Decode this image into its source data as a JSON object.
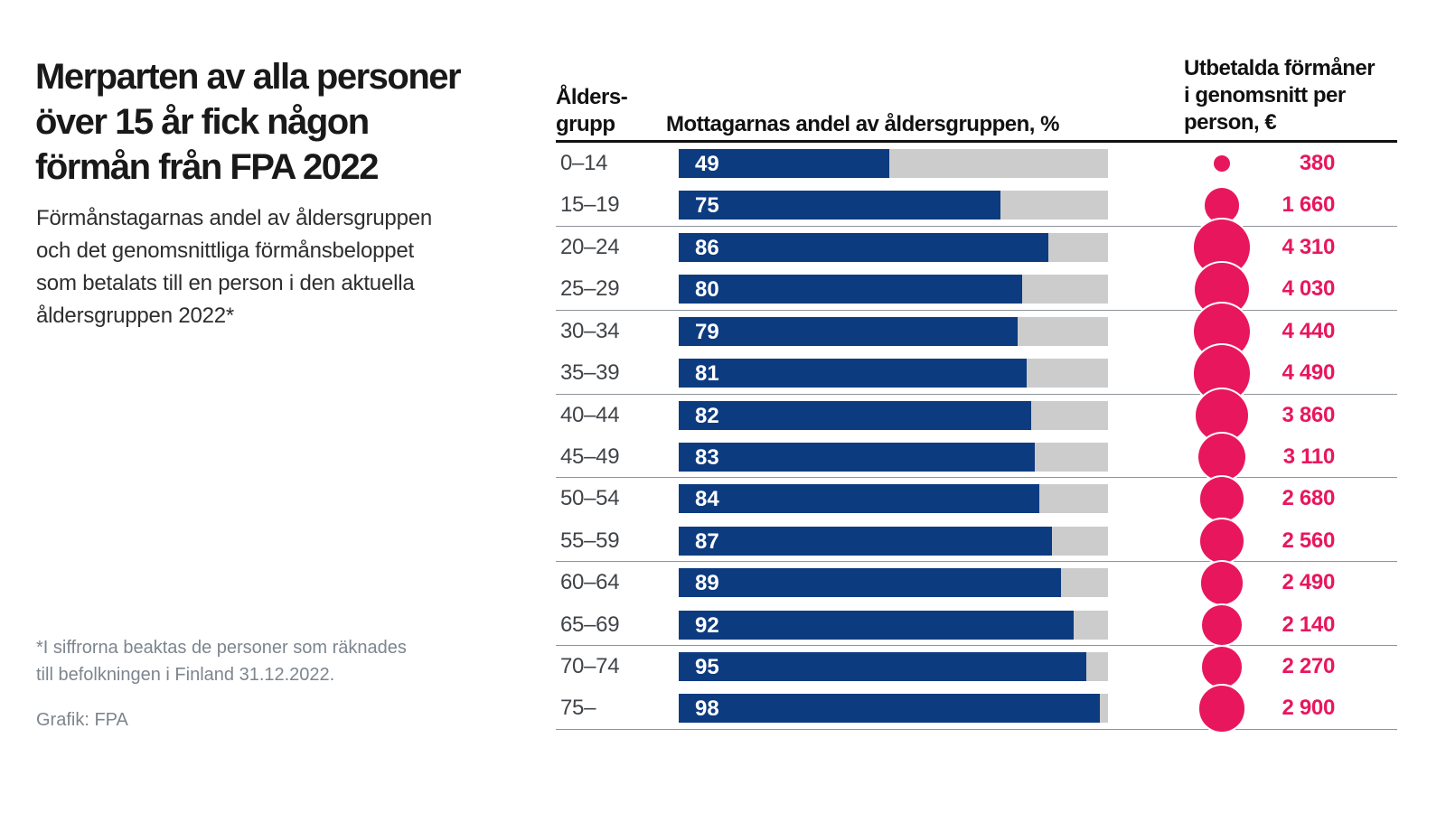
{
  "title_lines": [
    "Merparten av alla personer",
    "över 15 år fick någon",
    "förmån från FPA 2022"
  ],
  "subtitle_lines": [
    "Förmånstagarnas andel av åldersgruppen",
    "och det genomsnittliga förmånsbeloppet",
    "som betalats till en person i den aktuella",
    "åldersgruppen 2022*"
  ],
  "footnote_lines": [
    "*I siffrorna beaktas de personer som räknades",
    "till befolkningen i Finland 31.12.2022."
  ],
  "credit": "Grafik: FPA",
  "table": {
    "col1_header_lines": [
      "Ålders-",
      "grupp"
    ],
    "col2_header": "Mottagarnas andel av åldersgruppen, %",
    "col3_header_lines": [
      "Utbetalda förmåner",
      "i genomsnitt per",
      "person, €"
    ],
    "rows": [
      {
        "age": "0–14",
        "pct": 49,
        "amount": 380,
        "amount_display": "380"
      },
      {
        "age": "15–19",
        "pct": 75,
        "amount": 1660,
        "amount_display": "1 660"
      },
      {
        "age": "20–24",
        "pct": 86,
        "amount": 4310,
        "amount_display": "4 310"
      },
      {
        "age": "25–29",
        "pct": 80,
        "amount": 4030,
        "amount_display": "4 030"
      },
      {
        "age": "30–34",
        "pct": 79,
        "amount": 4440,
        "amount_display": "4 440"
      },
      {
        "age": "35–39",
        "pct": 81,
        "amount": 4490,
        "amount_display": "4 490"
      },
      {
        "age": "40–44",
        "pct": 82,
        "amount": 3860,
        "amount_display": "3 860"
      },
      {
        "age": "45–49",
        "pct": 83,
        "amount": 3110,
        "amount_display": "3 110"
      },
      {
        "age": "50–54",
        "pct": 84,
        "amount": 2680,
        "amount_display": "2 680"
      },
      {
        "age": "55–59",
        "pct": 87,
        "amount": 2560,
        "amount_display": "2 560"
      },
      {
        "age": "60–64",
        "pct": 89,
        "amount": 2490,
        "amount_display": "2 490"
      },
      {
        "age": "65–69",
        "pct": 92,
        "amount": 2140,
        "amount_display": "2 140"
      },
      {
        "age": "70–74",
        "pct": 95,
        "amount": 2270,
        "amount_display": "2 270"
      },
      {
        "age": "75–",
        "pct": 98,
        "amount": 2900,
        "amount_display": "2 900"
      }
    ]
  },
  "colors": {
    "bar_blue": "#0d3b80",
    "bubble_pink": "#e8175d",
    "track_gray": "#cccccc",
    "rule_black": "#111111",
    "divider_gray": "#8f949a"
  },
  "chart_data": {
    "type": "bar",
    "title": "Merparten av alla personer över 15 år fick någon förmån från FPA 2022",
    "subtitle": "Förmånstagarnas andel av åldersgruppen och det genomsnittliga förmånsbeloppet som betalats till en person i den aktuella åldersgruppen 2022*",
    "categories": [
      "0–14",
      "15–19",
      "20–24",
      "25–29",
      "30–34",
      "35–39",
      "40–44",
      "45–49",
      "50–54",
      "55–59",
      "60–64",
      "65–69",
      "70–74",
      "75–"
    ],
    "series": [
      {
        "name": "Mottagarnas andel av åldersgruppen, %",
        "type": "bar",
        "values": [
          49,
          75,
          86,
          80,
          79,
          81,
          82,
          83,
          84,
          87,
          89,
          92,
          95,
          98
        ],
        "xlim": [
          0,
          100
        ]
      },
      {
        "name": "Utbetalda förmåner i genomsnitt per person, €",
        "type": "bubble",
        "values": [
          380,
          1660,
          4310,
          4030,
          4440,
          4490,
          3860,
          3110,
          2680,
          2560,
          2490,
          2140,
          2270,
          2900
        ]
      }
    ],
    "orientation": "horizontal",
    "grid": false,
    "legend_position": "none",
    "footnote": "*I siffrorna beaktas de personer som räknades till befolkningen i Finland 31.12.2022.",
    "source": "Grafik: FPA"
  }
}
